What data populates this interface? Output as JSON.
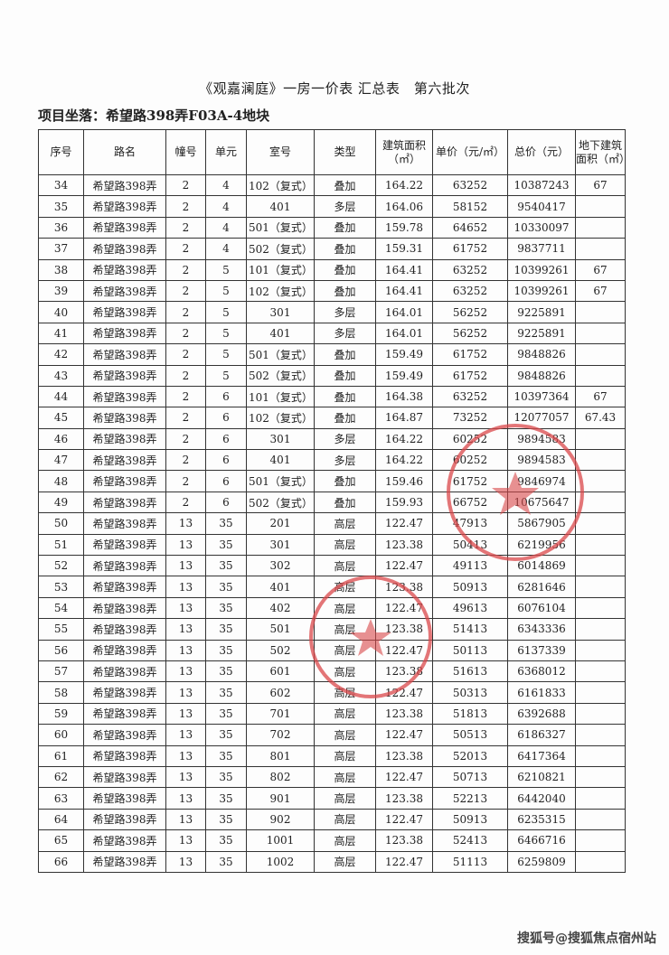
{
  "title": "《观嘉澜庭》一房一价表 汇总表　第六批次",
  "location": "项目坐落：希望路398弄F03A-4地块",
  "columns": [
    "序号",
    "路名",
    "幢号",
    "单元",
    "室号",
    "类型",
    "建筑面积（㎡）",
    "单价（元/㎡）",
    "总价（元）",
    "地下建筑面积（㎡）"
  ],
  "rows": [
    [
      "34",
      "希望路398弄",
      "2",
      "4",
      "102（复式）",
      "叠加",
      "164.22",
      "63252",
      "10387243",
      "67"
    ],
    [
      "35",
      "希望路398弄",
      "2",
      "4",
      "401",
      "多层",
      "164.06",
      "58152",
      "9540417",
      ""
    ],
    [
      "36",
      "希望路398弄",
      "2",
      "4",
      "501（复式）",
      "叠加",
      "159.78",
      "64652",
      "10330097",
      ""
    ],
    [
      "37",
      "希望路398弄",
      "2",
      "4",
      "502（复式）",
      "叠加",
      "159.31",
      "61752",
      "9837711",
      ""
    ],
    [
      "38",
      "希望路398弄",
      "2",
      "5",
      "101（复式）",
      "叠加",
      "164.41",
      "63252",
      "10399261",
      "67"
    ],
    [
      "39",
      "希望路398弄",
      "2",
      "5",
      "102（复式）",
      "叠加",
      "164.41",
      "63252",
      "10399261",
      "67"
    ],
    [
      "40",
      "希望路398弄",
      "2",
      "5",
      "301",
      "多层",
      "164.01",
      "56252",
      "9225891",
      ""
    ],
    [
      "41",
      "希望路398弄",
      "2",
      "5",
      "401",
      "多层",
      "164.01",
      "56252",
      "9225891",
      ""
    ],
    [
      "42",
      "希望路398弄",
      "2",
      "5",
      "501（复式）",
      "叠加",
      "159.49",
      "61752",
      "9848826",
      ""
    ],
    [
      "43",
      "希望路398弄",
      "2",
      "5",
      "502（复式）",
      "叠加",
      "159.49",
      "61752",
      "9848826",
      ""
    ],
    [
      "44",
      "希望路398弄",
      "2",
      "6",
      "101（复式）",
      "叠加",
      "164.38",
      "63252",
      "10397364",
      "67"
    ],
    [
      "45",
      "希望路398弄",
      "2",
      "6",
      "102（复式）",
      "叠加",
      "164.87",
      "73252",
      "12077057",
      "67.43"
    ],
    [
      "46",
      "希望路398弄",
      "2",
      "6",
      "301",
      "多层",
      "164.22",
      "60252",
      "9894583",
      ""
    ],
    [
      "47",
      "希望路398弄",
      "2",
      "6",
      "401",
      "多层",
      "164.22",
      "60252",
      "9894583",
      ""
    ],
    [
      "48",
      "希望路398弄",
      "2",
      "6",
      "501（复式）",
      "叠加",
      "159.46",
      "61752",
      "9846974",
      ""
    ],
    [
      "49",
      "希望路398弄",
      "2",
      "6",
      "502（复式）",
      "叠加",
      "159.93",
      "66752",
      "10675647",
      ""
    ],
    [
      "50",
      "希望路398弄",
      "13",
      "35",
      "201",
      "高层",
      "122.47",
      "47913",
      "5867905",
      ""
    ],
    [
      "51",
      "希望路398弄",
      "13",
      "35",
      "301",
      "高层",
      "123.38",
      "50413",
      "6219956",
      ""
    ],
    [
      "52",
      "希望路398弄",
      "13",
      "35",
      "302",
      "高层",
      "122.47",
      "49113",
      "6014869",
      ""
    ],
    [
      "53",
      "希望路398弄",
      "13",
      "35",
      "401",
      "高层",
      "123.38",
      "50913",
      "6281646",
      ""
    ],
    [
      "54",
      "希望路398弄",
      "13",
      "35",
      "402",
      "高层",
      "122.47",
      "49613",
      "6076104",
      ""
    ],
    [
      "55",
      "希望路398弄",
      "13",
      "35",
      "501",
      "高层",
      "123.38",
      "51413",
      "6343336",
      ""
    ],
    [
      "56",
      "希望路398弄",
      "13",
      "35",
      "502",
      "高层",
      "122.47",
      "50113",
      "6137339",
      ""
    ],
    [
      "57",
      "希望路398弄",
      "13",
      "35",
      "601",
      "高层",
      "123.38",
      "51613",
      "6368012",
      ""
    ],
    [
      "58",
      "希望路398弄",
      "13",
      "35",
      "602",
      "高层",
      "122.47",
      "50313",
      "6161833",
      ""
    ],
    [
      "59",
      "希望路398弄",
      "13",
      "35",
      "701",
      "高层",
      "123.38",
      "51813",
      "6392688",
      ""
    ],
    [
      "60",
      "希望路398弄",
      "13",
      "35",
      "702",
      "高层",
      "122.47",
      "50513",
      "6186327",
      ""
    ],
    [
      "61",
      "希望路398弄",
      "13",
      "35",
      "801",
      "高层",
      "123.38",
      "52013",
      "6417364",
      ""
    ],
    [
      "62",
      "希望路398弄",
      "13",
      "35",
      "802",
      "高层",
      "122.47",
      "50713",
      "6210821",
      ""
    ],
    [
      "63",
      "希望路398弄",
      "13",
      "35",
      "901",
      "高层",
      "123.38",
      "52213",
      "6442040",
      ""
    ],
    [
      "64",
      "希望路398弄",
      "13",
      "35",
      "902",
      "高层",
      "122.47",
      "50913",
      "6235315",
      ""
    ],
    [
      "65",
      "希望路398弄",
      "13",
      "35",
      "1001",
      "高层",
      "123.38",
      "52413",
      "6466716",
      ""
    ],
    [
      "66",
      "希望路398弄",
      "13",
      "35",
      "1002",
      "高层",
      "122.47",
      "51113",
      "6259809",
      ""
    ]
  ],
  "stamp_color": "#d9474a",
  "watermark": "搜狐号@搜狐焦点宿州站"
}
